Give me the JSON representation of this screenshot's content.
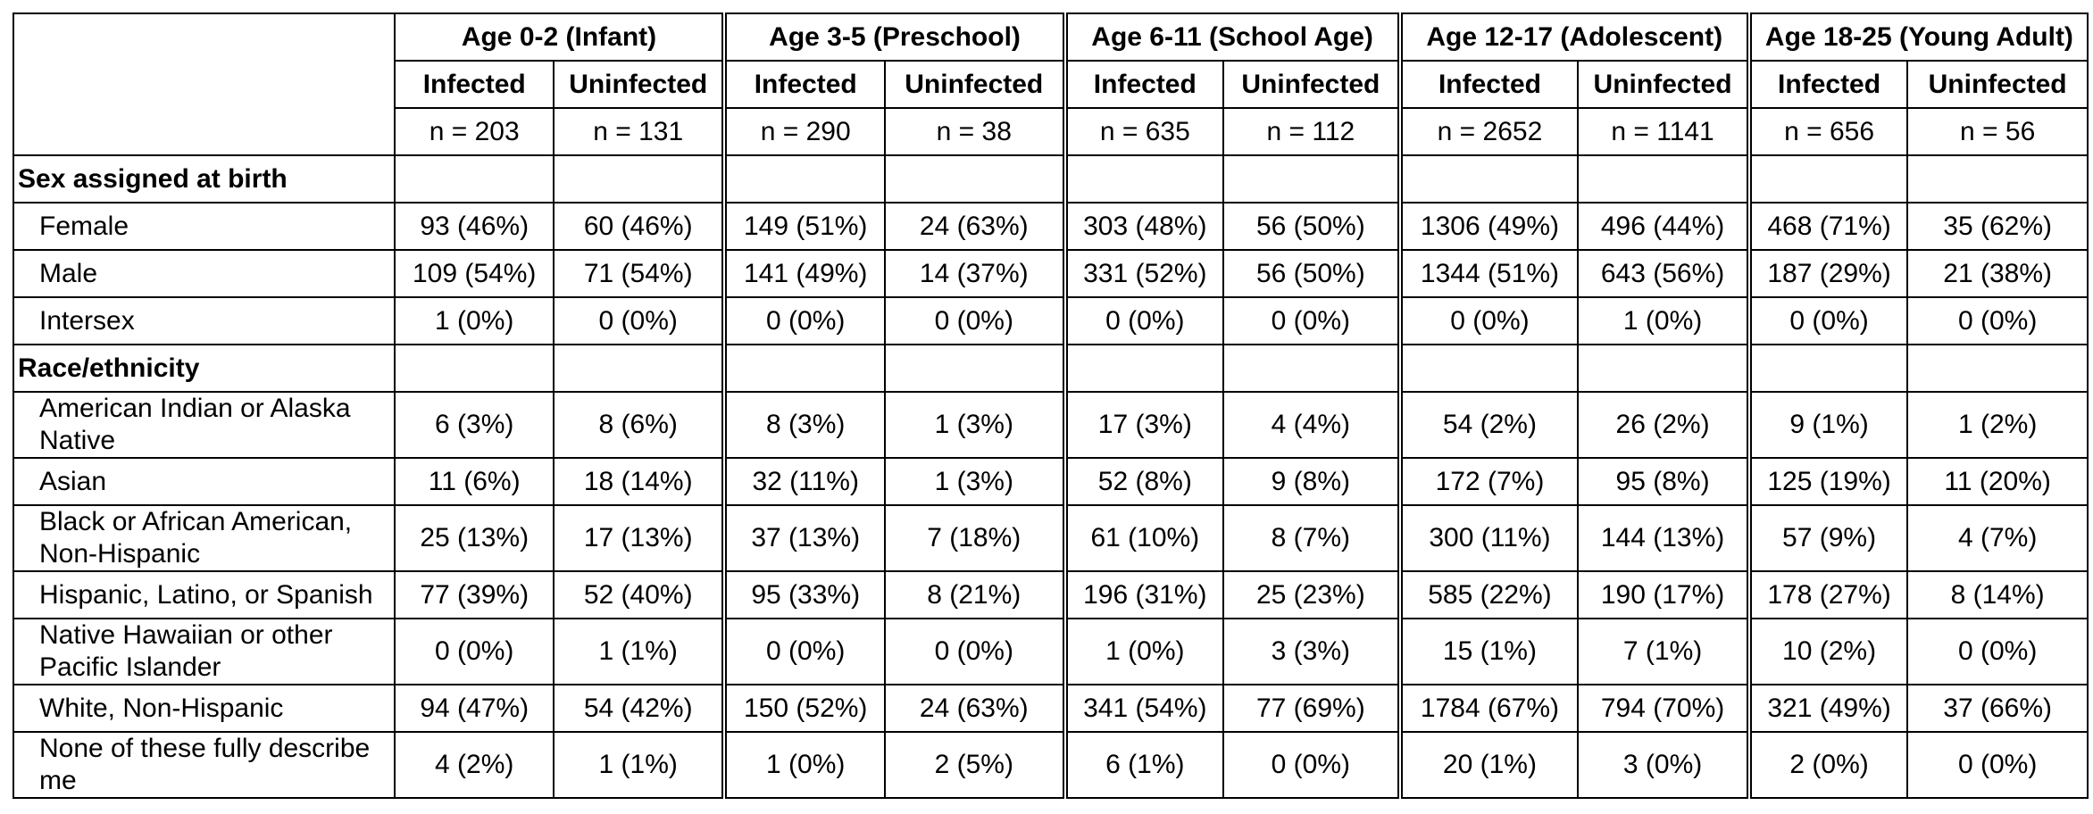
{
  "table": {
    "groups": [
      {
        "title": "Age 0-2 (Infant)",
        "infected_label": "Infected",
        "uninfected_label": "Uninfected",
        "n_infected": "n = 203",
        "n_uninfected": "n = 131"
      },
      {
        "title": "Age 3-5 (Preschool)",
        "infected_label": "Infected",
        "uninfected_label": "Uninfected",
        "n_infected": "n = 290",
        "n_uninfected": "n = 38"
      },
      {
        "title": "Age 6-11 (School Age)",
        "infected_label": "Infected",
        "uninfected_label": "Uninfected",
        "n_infected": "n = 635",
        "n_uninfected": "n = 112"
      },
      {
        "title": "Age 12-17 (Adolescent)",
        "infected_label": "Infected",
        "uninfected_label": "Uninfected",
        "n_infected": "n = 2652",
        "n_uninfected": "n = 1141"
      },
      {
        "title": "Age 18-25 (Young Adult)",
        "infected_label": "Infected",
        "uninfected_label": "Uninfected",
        "n_infected": "n = 656",
        "n_uninfected": "n = 56"
      }
    ],
    "sections": [
      {
        "title": "Sex assigned at birth",
        "rows": [
          {
            "label": "Female",
            "cells": [
              "93 (46%)",
              "60 (46%)",
              "149 (51%)",
              "24 (63%)",
              "303 (48%)",
              "56 (50%)",
              "1306 (49%)",
              "496 (44%)",
              "468 (71%)",
              "35 (62%)"
            ]
          },
          {
            "label": "Male",
            "cells": [
              "109 (54%)",
              "71 (54%)",
              "141 (49%)",
              "14 (37%)",
              "331 (52%)",
              "56 (50%)",
              "1344 (51%)",
              "643 (56%)",
              "187 (29%)",
              "21 (38%)"
            ]
          },
          {
            "label": "Intersex",
            "cells": [
              "1 (0%)",
              "0 (0%)",
              "0 (0%)",
              "0 (0%)",
              "0 (0%)",
              "0 (0%)",
              "0 (0%)",
              "1 (0%)",
              "0 (0%)",
              "0 (0%)"
            ]
          }
        ]
      },
      {
        "title": "Race/ethnicity",
        "rows": [
          {
            "label": "American Indian or Alaska Native",
            "cells": [
              "6 (3%)",
              "8 (6%)",
              "8 (3%)",
              "1 (3%)",
              "17 (3%)",
              "4 (4%)",
              "54 (2%)",
              "26 (2%)",
              "9 (1%)",
              "1 (2%)"
            ]
          },
          {
            "label": "Asian",
            "cells": [
              "11 (6%)",
              "18 (14%)",
              "32 (11%)",
              "1 (3%)",
              "52 (8%)",
              "9 (8%)",
              "172 (7%)",
              "95 (8%)",
              "125 (19%)",
              "11 (20%)"
            ]
          },
          {
            "label": "Black or African American, Non-Hispanic",
            "cells": [
              "25 (13%)",
              "17 (13%)",
              "37 (13%)",
              "7 (18%)",
              "61 (10%)",
              "8 (7%)",
              "300 (11%)",
              "144 (13%)",
              "57 (9%)",
              "4 (7%)"
            ]
          },
          {
            "label": "Hispanic, Latino, or Spanish",
            "cells": [
              "77 (39%)",
              "52 (40%)",
              "95 (33%)",
              "8 (21%)",
              "196 (31%)",
              "25 (23%)",
              "585 (22%)",
              "190 (17%)",
              "178 (27%)",
              "8 (14%)"
            ]
          },
          {
            "label": "Native Hawaiian or other Pacific Islander",
            "cells": [
              "0 (0%)",
              "1 (1%)",
              "0 (0%)",
              "0 (0%)",
              "1 (0%)",
              "3 (3%)",
              "15 (1%)",
              "7 (1%)",
              "10 (2%)",
              "0 (0%)"
            ]
          },
          {
            "label": "White, Non-Hispanic",
            "cells": [
              "94 (47%)",
              "54 (42%)",
              "150 (52%)",
              "24 (63%)",
              "341 (54%)",
              "77 (69%)",
              "1784 (67%)",
              "794 (70%)",
              "321 (49%)",
              "37 (66%)"
            ]
          },
          {
            "label": "None of these fully describe me",
            "cells": [
              "4 (2%)",
              "1 (1%)",
              "1 (0%)",
              "2 (5%)",
              "6 (1%)",
              "0 (0%)",
              "20 (1%)",
              "3 (0%)",
              "2 (0%)",
              "0 (0%)"
            ]
          }
        ]
      }
    ]
  }
}
